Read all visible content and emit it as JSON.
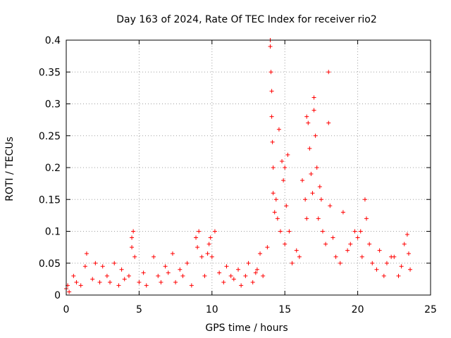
{
  "chart_data": {
    "type": "scatter",
    "title": "Day 163 of 2024, Rate Of TEC Index for receiver rio2",
    "xlabel": "GPS time / hours",
    "ylabel": "ROTI / TECUs",
    "xlim": [
      0,
      25
    ],
    "ylim": [
      0,
      0.4
    ],
    "xticks": [
      0,
      5,
      10,
      15,
      20,
      25
    ],
    "xtick_labels": [
      "0",
      "5",
      "10",
      "15",
      "20",
      "25"
    ],
    "yticks": [
      0,
      0.05,
      0.1,
      0.15,
      0.2,
      0.25,
      0.3,
      0.35,
      0.4
    ],
    "ytick_labels": [
      "0",
      "0.05",
      "0.1",
      "0.15",
      "0.2",
      "0.25",
      "0.3",
      "0.35",
      "0.4"
    ],
    "grid": true,
    "marker": "+",
    "color": "#ff0000",
    "series": [
      {
        "name": "ROTI",
        "x": [
          0.0,
          0.1,
          0.2,
          0.5,
          0.7,
          1.0,
          1.3,
          1.4,
          1.8,
          2.0,
          2.3,
          2.5,
          2.8,
          3.0,
          3.3,
          3.6,
          3.8,
          4.0,
          4.3,
          4.5,
          4.5,
          4.6,
          4.7,
          5.0,
          5.3,
          5.5,
          6.0,
          6.3,
          6.5,
          6.8,
          7.0,
          7.3,
          7.5,
          7.8,
          8.0,
          8.3,
          8.6,
          8.9,
          9.0,
          9.1,
          9.3,
          9.5,
          9.7,
          9.8,
          9.9,
          10.0,
          10.2,
          10.5,
          10.8,
          11.0,
          11.3,
          11.5,
          11.8,
          12.0,
          12.3,
          12.5,
          12.8,
          13.0,
          13.1,
          13.3,
          13.5,
          13.8,
          14.0,
          14.0,
          14.05,
          14.1,
          14.1,
          14.15,
          14.2,
          14.2,
          14.3,
          14.4,
          14.5,
          14.6,
          14.7,
          14.8,
          14.9,
          15.0,
          15.0,
          15.1,
          15.2,
          15.3,
          15.5,
          15.8,
          16.0,
          16.2,
          16.4,
          16.5,
          16.5,
          16.6,
          16.7,
          16.8,
          16.9,
          17.0,
          17.0,
          17.1,
          17.2,
          17.3,
          17.4,
          17.5,
          17.6,
          17.8,
          18.0,
          18.0,
          18.1,
          18.3,
          18.5,
          18.8,
          19.0,
          19.3,
          19.5,
          19.8,
          20.0,
          20.2,
          20.3,
          20.5,
          20.6,
          20.8,
          21.0,
          21.3,
          21.5,
          21.8,
          22.0,
          22.3,
          22.5,
          22.8,
          23.0,
          23.2,
          23.4,
          23.5,
          23.6
        ],
        "y": [
          0.01,
          0.015,
          0.005,
          0.03,
          0.02,
          0.015,
          0.045,
          0.065,
          0.025,
          0.05,
          0.02,
          0.045,
          0.03,
          0.02,
          0.05,
          0.015,
          0.04,
          0.025,
          0.03,
          0.09,
          0.075,
          0.1,
          0.06,
          0.02,
          0.035,
          0.015,
          0.06,
          0.03,
          0.02,
          0.045,
          0.035,
          0.065,
          0.02,
          0.04,
          0.03,
          0.05,
          0.015,
          0.09,
          0.075,
          0.1,
          0.06,
          0.03,
          0.065,
          0.08,
          0.09,
          0.06,
          0.1,
          0.035,
          0.02,
          0.045,
          0.03,
          0.025,
          0.04,
          0.015,
          0.03,
          0.05,
          0.02,
          0.035,
          0.04,
          0.065,
          0.03,
          0.075,
          0.4,
          0.39,
          0.35,
          0.32,
          0.28,
          0.24,
          0.2,
          0.16,
          0.13,
          0.15,
          0.12,
          0.26,
          0.1,
          0.21,
          0.18,
          0.2,
          0.08,
          0.14,
          0.22,
          0.1,
          0.05,
          0.07,
          0.06,
          0.18,
          0.15,
          0.12,
          0.28,
          0.27,
          0.23,
          0.19,
          0.16,
          0.31,
          0.29,
          0.25,
          0.2,
          0.12,
          0.17,
          0.15,
          0.1,
          0.08,
          0.35,
          0.27,
          0.14,
          0.09,
          0.06,
          0.05,
          0.13,
          0.07,
          0.08,
          0.1,
          0.09,
          0.1,
          0.06,
          0.15,
          0.12,
          0.08,
          0.05,
          0.04,
          0.07,
          0.03,
          0.05,
          0.06,
          0.06,
          0.03,
          0.045,
          0.08,
          0.095,
          0.065,
          0.04
        ]
      }
    ]
  }
}
